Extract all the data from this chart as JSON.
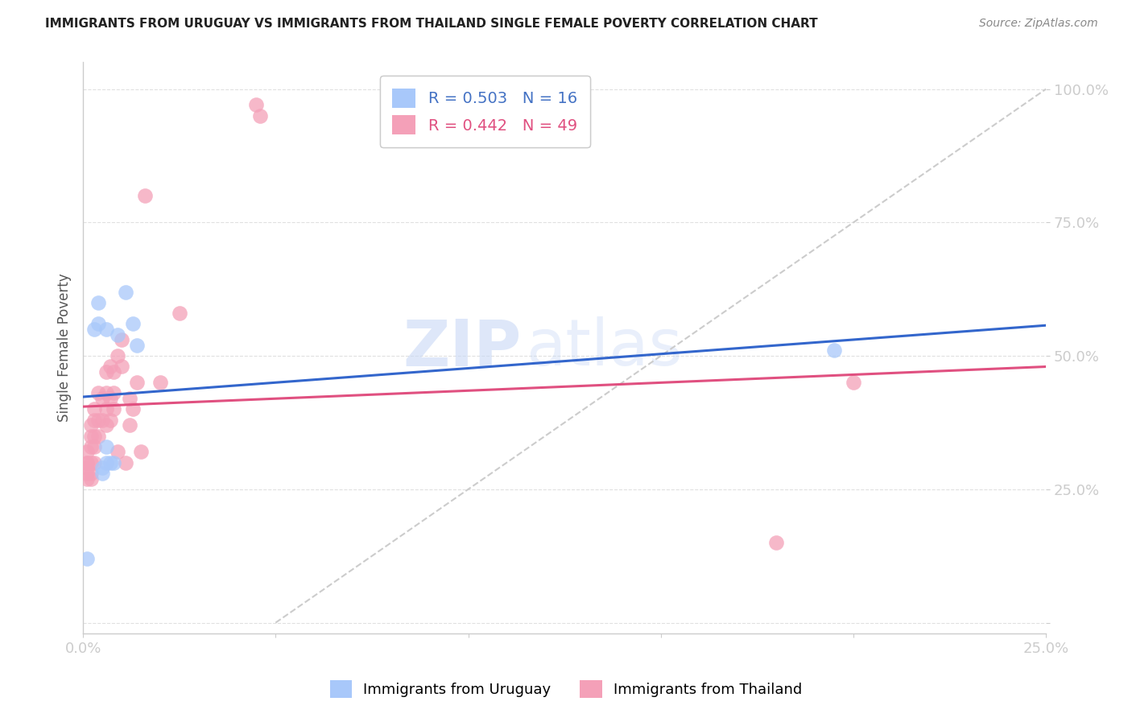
{
  "title": "IMMIGRANTS FROM URUGUAY VS IMMIGRANTS FROM THAILAND SINGLE FEMALE POVERTY CORRELATION CHART",
  "source": "Source: ZipAtlas.com",
  "ylabel": "Single Female Poverty",
  "xlim": [
    0.0,
    0.25
  ],
  "ylim": [
    -0.02,
    1.05
  ],
  "xticks": [
    0.0,
    0.05,
    0.1,
    0.15,
    0.2,
    0.25
  ],
  "yticks": [
    0.0,
    0.25,
    0.5,
    0.75,
    1.0
  ],
  "xtick_labels": [
    "0.0%",
    "",
    "",
    "",
    "",
    "25.0%"
  ],
  "ytick_labels": [
    "",
    "25.0%",
    "50.0%",
    "75.0%",
    "100.0%"
  ],
  "uruguay_color": "#a8c8fa",
  "thailand_color": "#f4a0b8",
  "uruguay_line_color": "#3366cc",
  "thailand_line_color": "#e05080",
  "legend_uruguay_r": 0.503,
  "legend_uruguay_n": 16,
  "legend_thailand_r": 0.442,
  "legend_thailand_n": 49,
  "uruguay_x": [
    0.001,
    0.003,
    0.004,
    0.004,
    0.005,
    0.005,
    0.006,
    0.006,
    0.006,
    0.007,
    0.008,
    0.009,
    0.011,
    0.013,
    0.014,
    0.195
  ],
  "uruguay_y": [
    0.12,
    0.55,
    0.6,
    0.56,
    0.28,
    0.29,
    0.33,
    0.3,
    0.55,
    0.3,
    0.3,
    0.54,
    0.62,
    0.56,
    0.52,
    0.51
  ],
  "thailand_x": [
    0.001,
    0.001,
    0.001,
    0.001,
    0.001,
    0.001,
    0.002,
    0.002,
    0.002,
    0.002,
    0.002,
    0.002,
    0.003,
    0.003,
    0.003,
    0.003,
    0.003,
    0.004,
    0.004,
    0.004,
    0.005,
    0.005,
    0.006,
    0.006,
    0.006,
    0.006,
    0.007,
    0.007,
    0.007,
    0.008,
    0.008,
    0.008,
    0.009,
    0.009,
    0.01,
    0.01,
    0.011,
    0.012,
    0.012,
    0.013,
    0.014,
    0.015,
    0.016,
    0.02,
    0.025,
    0.045,
    0.046,
    0.18,
    0.2
  ],
  "thailand_y": [
    0.27,
    0.28,
    0.29,
    0.3,
    0.3,
    0.32,
    0.27,
    0.28,
    0.3,
    0.33,
    0.35,
    0.37,
    0.3,
    0.33,
    0.35,
    0.38,
    0.4,
    0.35,
    0.38,
    0.43,
    0.38,
    0.42,
    0.37,
    0.4,
    0.43,
    0.47,
    0.38,
    0.42,
    0.48,
    0.4,
    0.43,
    0.47,
    0.32,
    0.5,
    0.48,
    0.53,
    0.3,
    0.37,
    0.42,
    0.4,
    0.45,
    0.32,
    0.8,
    0.45,
    0.58,
    0.97,
    0.95,
    0.15,
    0.45
  ],
  "watermark_zip": "ZIP",
  "watermark_atlas": "atlas",
  "background_color": "#ffffff",
  "grid_color": "#e0e0e0",
  "legend_label_uruguay": "Immigrants from Uruguay",
  "legend_label_thailand": "Immigrants from Thailand"
}
